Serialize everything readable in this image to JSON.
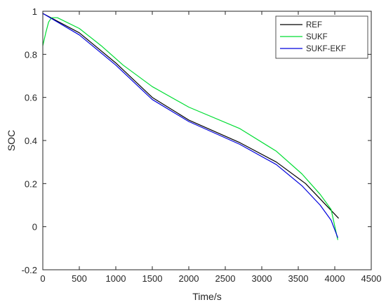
{
  "chart_data": {
    "type": "line",
    "title": "",
    "xlabel": "Time/s",
    "ylabel": "SOC",
    "xlim": [
      0,
      4500
    ],
    "ylim": [
      -0.2,
      1
    ],
    "xticks": [
      "0",
      "500",
      "1000",
      "1500",
      "2000",
      "2500",
      "3000",
      "3500",
      "4000",
      "4500"
    ],
    "yticks": [
      "-0.2",
      "0",
      "0.2",
      "0.4",
      "0.6",
      "0.8",
      "1"
    ],
    "grid": false,
    "legend_position": "top-right",
    "series": [
      {
        "name": "REF",
        "color": "#000000",
        "x": [
          0,
          500,
          1000,
          1500,
          2000,
          2700,
          3200,
          3600,
          4050
        ],
        "y": [
          0.99,
          0.9,
          0.76,
          0.6,
          0.495,
          0.39,
          0.3,
          0.2,
          0.04
        ]
      },
      {
        "name": "SUKF",
        "color": "#00dd33",
        "x": [
          0,
          40,
          80,
          120,
          200,
          500,
          800,
          1100,
          1500,
          2000,
          2700,
          3200,
          3550,
          3800,
          3950,
          4040
        ],
        "y": [
          0.84,
          0.9,
          0.95,
          0.97,
          0.97,
          0.92,
          0.84,
          0.75,
          0.65,
          0.555,
          0.455,
          0.35,
          0.245,
          0.15,
          0.08,
          -0.06
        ]
      },
      {
        "name": "SUKF-EKF",
        "color": "#0000dd",
        "x": [
          0,
          500,
          1000,
          1500,
          2000,
          2700,
          3200,
          3550,
          3800,
          3950,
          4040
        ],
        "y": [
          0.99,
          0.89,
          0.75,
          0.59,
          0.488,
          0.382,
          0.288,
          0.19,
          0.1,
          0.03,
          -0.05
        ]
      }
    ]
  }
}
